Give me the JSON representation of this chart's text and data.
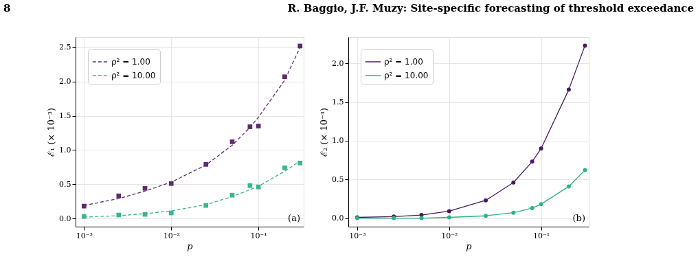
{
  "chart_data": [
    {
      "type": "line",
      "xlabel": "p",
      "ylabel": "ℰ₁ (× 10⁻³)",
      "log": "x",
      "grid": true,
      "legend": "top left",
      "x": [
        0.001,
        0.0025,
        0.005,
        0.01,
        0.025,
        0.05,
        0.08,
        0.1,
        0.2,
        0.3
      ],
      "xlim": [
        0.0008,
        0.33
      ],
      "xticks": [
        {
          "value": 0.001,
          "label": "10⁻³"
        },
        {
          "value": 0.01,
          "label": "10⁻²"
        },
        {
          "value": 0.1,
          "label": "10⁻¹"
        }
      ],
      "ylim": [
        -0.12,
        2.65
      ],
      "yticks": [
        {
          "value": 0,
          "label": "0.0"
        },
        0.5,
        {
          "value": 1,
          "label": "1.0"
        },
        1.5,
        {
          "value": 2,
          "label": "2.0"
        },
        2.5
      ],
      "annotations": [
        "8",
        "R. Baggio, J.F. Muzy: Site-specific forecasting of threshold exceedance",
        "(a)"
      ],
      "series": [
        {
          "name": "ρ² = 1.00",
          "type": "line",
          "line_style": "dashed",
          "marker": "none",
          "color": "#5c2d6e",
          "values": [
            0.19,
            0.29,
            0.4,
            0.53,
            0.78,
            1.07,
            1.33,
            1.48,
            2.02,
            2.5
          ]
        },
        {
          "name": "ρ² = 10.00",
          "type": "line",
          "line_style": "dashed",
          "marker": "none",
          "color": "#3bb58c",
          "values": [
            0.02,
            0.04,
            0.07,
            0.11,
            0.2,
            0.32,
            0.42,
            0.47,
            0.69,
            0.84
          ]
        },
        {
          "type": "scatter",
          "marker": "square",
          "color": "#5c2d6e",
          "values": [
            0.18,
            0.33,
            0.44,
            0.51,
            0.79,
            1.12,
            1.34,
            1.35,
            2.07,
            2.52
          ]
        },
        {
          "type": "scatter",
          "marker": "square",
          "color": "#3bb58c",
          "values": [
            0.03,
            0.05,
            0.06,
            0.08,
            0.19,
            0.34,
            0.48,
            0.46,
            0.74,
            0.81
          ]
        }
      ]
    },
    {
      "type": "line",
      "xlabel": "p",
      "ylabel": "ℰ₂ (× 10⁻³)",
      "log": "x",
      "grid": true,
      "legend": "top left",
      "marker": "circle",
      "line_style": "solid",
      "x": [
        0.001,
        0.0025,
        0.005,
        0.01,
        0.025,
        0.05,
        0.08,
        0.1,
        0.2,
        0.3
      ],
      "xlim": [
        0.0008,
        0.33
      ],
      "xticks": [
        {
          "value": 0.001,
          "label": "10⁻³"
        },
        {
          "value": 0.01,
          "label": "10⁻²"
        },
        {
          "value": 0.1,
          "label": "10⁻¹"
        }
      ],
      "ylim": [
        -0.11,
        2.34
      ],
      "yticks": [
        {
          "value": 0,
          "label": "0.0"
        },
        0.5,
        {
          "value": 1,
          "label": "1.0"
        },
        1.5,
        {
          "value": 2,
          "label": "2.0"
        }
      ],
      "annotations": [
        "(b)"
      ],
      "series": [
        {
          "name": "ρ² = 1.00",
          "color": "#4a1a5e",
          "values": [
            0.01,
            0.02,
            0.04,
            0.09,
            0.23,
            0.46,
            0.73,
            0.9,
            1.66,
            2.23
          ]
        },
        {
          "name": "ρ² = 10.00",
          "color": "#2db384",
          "values": [
            0.0,
            0.0,
            0.0,
            0.01,
            0.03,
            0.07,
            0.13,
            0.18,
            0.41,
            0.62
          ]
        }
      ]
    }
  ]
}
